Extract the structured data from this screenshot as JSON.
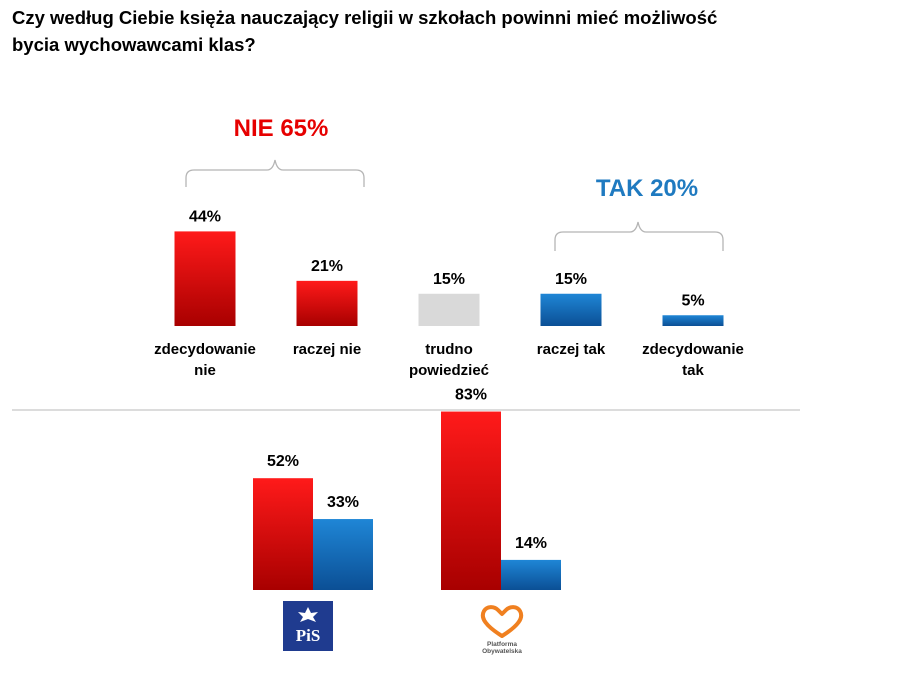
{
  "title": {
    "line1": "Czy według Ciebie księża nauczający religii w szkołach powinni mieć możliwość",
    "line2": "bycia wychowawcami klas?"
  },
  "chart_data": [
    {
      "type": "bar",
      "title": "Czy według Ciebie księża nauczający religii w szkołach powinni mieć możliwość bycia wychowawcami klas?",
      "categories": [
        [
          "zdecydowanie",
          "nie"
        ],
        [
          "raczej nie"
        ],
        [
          "trudno",
          "powiedzieć"
        ],
        [
          "raczej tak"
        ],
        [
          "zdecydowanie",
          "tak"
        ]
      ],
      "values": [
        44,
        21,
        15,
        15,
        5
      ],
      "labels": [
        "44%",
        "21%",
        "15%",
        "15%",
        "5%"
      ],
      "groups": [
        {
          "label": "NIE 65%",
          "color": "#e60000"
        },
        {
          "label": "TAK 20%",
          "color": "#1f7ac0"
        }
      ],
      "ylim": [
        0,
        100
      ]
    },
    {
      "type": "bar",
      "title": "",
      "categories": [
        "PiS",
        "Platforma Obywatelska"
      ],
      "series": [
        {
          "name": "NIE",
          "values": [
            52,
            83
          ],
          "labels": [
            "52%",
            "83%"
          ]
        },
        {
          "name": "TAK",
          "values": [
            33,
            14
          ],
          "labels": [
            "33%",
            "14%"
          ]
        }
      ],
      "ylim": [
        0,
        100
      ]
    }
  ],
  "logos": {
    "pis": {
      "text": "PiS"
    },
    "po": {
      "text_line1": "Platforma",
      "text_line2": "Obywatelska"
    }
  },
  "colors": {
    "red_top": "#ff1a1a",
    "red_bottom": "#a80000",
    "blue_top": "#1f86d6",
    "blue_bottom": "#0b4f95",
    "gray": "#d9d9d9",
    "nie_text": "#e60000",
    "tak_text": "#1f7ac0",
    "divider": "#c8c8c8",
    "po_orange": "#f08020",
    "pis_navy": "#1f3b8f"
  }
}
